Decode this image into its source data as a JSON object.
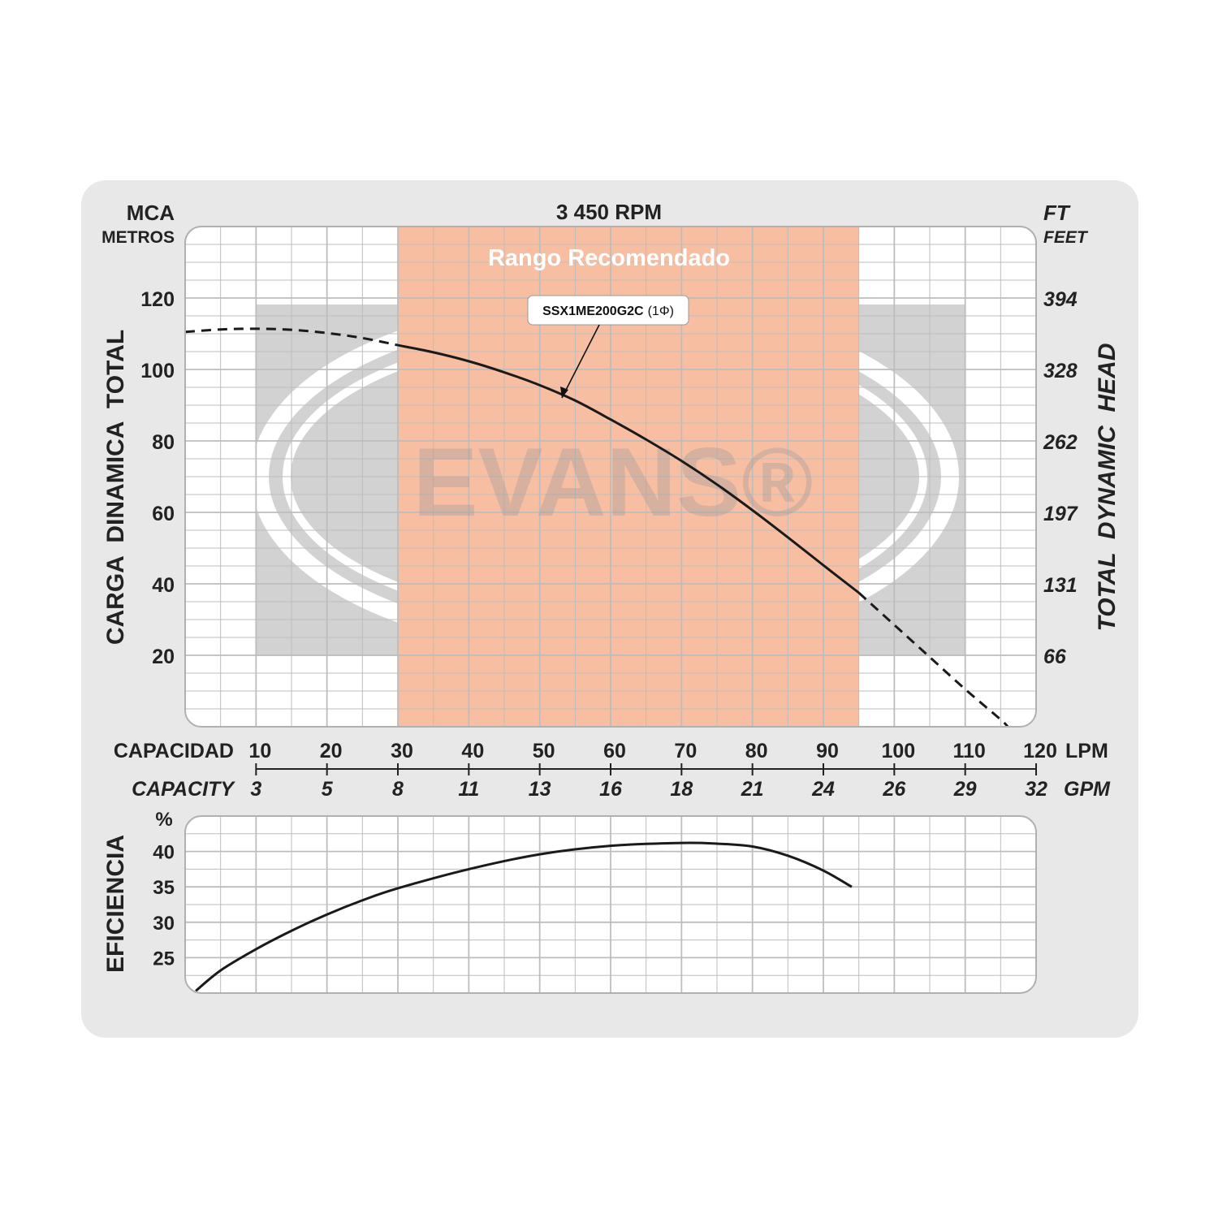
{
  "header": {
    "left_unit": "MCA",
    "left_unit_sub": "METROS",
    "title": "3 450 RPM",
    "right_unit": "FT",
    "right_unit_sub": "FEET"
  },
  "left_axis_title": "CARGA  DINAMICA  TOTAL",
  "right_axis_title": "TOTAL  DYNAMIC  HEAD",
  "efficiency_axis_title": "EFICIENCIA",
  "efficiency_unit": "%",
  "recommended_label": "Rango Recomendado",
  "curve_label_main": "SSX1ME200G2C",
  "curve_label_phase": "(1Φ)",
  "watermark": "EVANS®",
  "x_axis": {
    "top_title": "CAPACIDAD",
    "top_unit": "LPM",
    "bottom_title": "CAPACITY",
    "bottom_unit": "GPM",
    "lpm_ticks": [
      "10",
      "20",
      "30",
      "40",
      "50",
      "60",
      "70",
      "80",
      "90",
      "100",
      "110",
      "120"
    ],
    "gpm_ticks": [
      "3",
      "5",
      "8",
      "11",
      "13",
      "16",
      "18",
      "21",
      "24",
      "26",
      "29",
      "32"
    ]
  },
  "colors": {
    "panel": "#e8e8e8",
    "grid": "#bdbdbd",
    "recommended": "#f7b99a",
    "watermark_gray": "#c8c8c8",
    "curve": "#1a1a1a"
  },
  "chart_data": [
    {
      "type": "line",
      "title": "3 450 RPM",
      "xlabel": "CAPACIDAD (LPM)",
      "ylabel": "CARGA  DINAMICA  TOTAL",
      "xlim": [
        0,
        120
      ],
      "ylim": [
        0,
        140
      ],
      "y_ticks": [
        20,
        40,
        60,
        80,
        100,
        120
      ],
      "y_right_ticks": [
        "66",
        "131",
        "197",
        "262",
        "328",
        "394"
      ],
      "recommended_range": [
        30,
        95
      ],
      "grid": true,
      "series": [
        {
          "name": "SSX1ME200G2C (1Φ)",
          "segments": [
            {
              "style": "dashed",
              "x": [
                0,
                5,
                10,
                15,
                20,
                25,
                30
              ],
              "y": [
                110.5,
                111.2,
                111.4,
                111.1,
                110.2,
                108.8,
                106.8
              ]
            },
            {
              "style": "solid",
              "x": [
                30,
                35,
                40,
                45,
                50,
                55,
                60,
                65,
                70,
                75,
                80,
                85,
                90,
                95
              ],
              "y": [
                106.8,
                104.8,
                102.3,
                99.2,
                95.6,
                91.3,
                86.0,
                80.4,
                74.4,
                67.8,
                60.6,
                53.0,
                45.2,
                37.5
              ]
            },
            {
              "style": "dashed",
              "x": [
                95,
                100,
                105,
                110,
                115,
                116
              ],
              "y": [
                37.5,
                28.5,
                19.5,
                10.5,
                2.0,
                0
              ]
            }
          ]
        }
      ]
    },
    {
      "type": "line",
      "ylabel": "EFICIENCIA",
      "xlim": [
        0,
        120
      ],
      "ylim": [
        20,
        45
      ],
      "y_ticks": [
        25,
        30,
        35,
        40
      ],
      "grid": true,
      "series": [
        {
          "x": [
            1.5,
            5,
            10,
            15,
            20,
            25,
            30,
            40,
            50,
            60,
            70,
            75,
            80,
            85,
            90,
            94
          ],
          "y": [
            20.3,
            23.2,
            26.2,
            28.8,
            31.1,
            33.1,
            34.8,
            37.5,
            39.6,
            40.8,
            41.2,
            41.1,
            40.7,
            39.4,
            37.3,
            35.0
          ]
        }
      ]
    }
  ]
}
